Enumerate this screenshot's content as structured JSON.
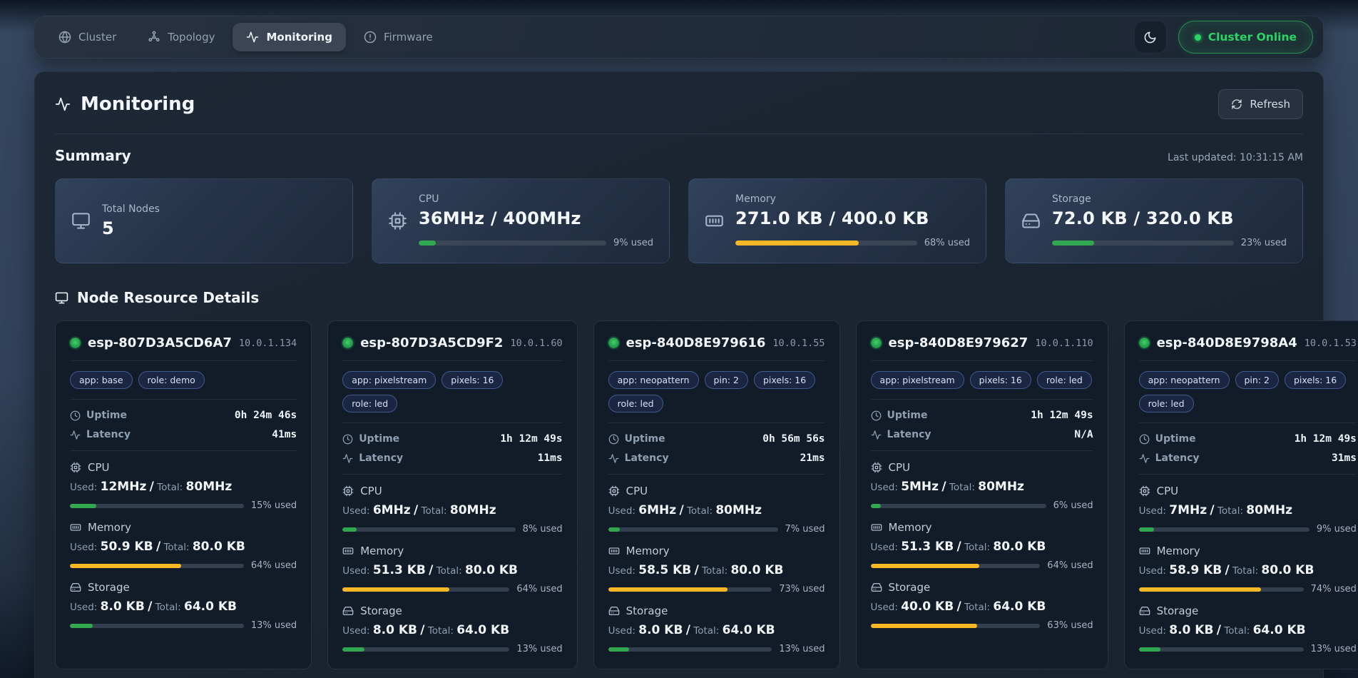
{
  "colors": {
    "green": "#31a84f",
    "amber": "#f8b825"
  },
  "nav": {
    "items": [
      {
        "label": "Cluster",
        "icon": "globe",
        "active": false
      },
      {
        "label": "Topology",
        "icon": "network",
        "active": false
      },
      {
        "label": "Monitoring",
        "icon": "activity",
        "active": true
      },
      {
        "label": "Firmware",
        "icon": "firmware",
        "active": false
      }
    ],
    "theme_toggle_icon": "moon",
    "status_button": {
      "label": "Cluster Online"
    }
  },
  "page": {
    "title": "Monitoring",
    "refresh_label": "Refresh"
  },
  "summary": {
    "heading": "Summary",
    "last_updated": "Last updated: 10:31:15 AM",
    "cards": [
      {
        "label": "Total Nodes",
        "value": "5",
        "icon": "monitor"
      },
      {
        "label": "CPU",
        "value": "36MHz / 400MHz",
        "icon": "cpu",
        "percent": 9,
        "percent_label": "9% used",
        "color": "green"
      },
      {
        "label": "Memory",
        "value": "271.0 KB / 400.0 KB",
        "icon": "memory",
        "percent": 68,
        "percent_label": "68% used",
        "color": "amber"
      },
      {
        "label": "Storage",
        "value": "72.0 KB / 320.0 KB",
        "icon": "storage",
        "percent": 23,
        "percent_label": "23% used",
        "color": "green"
      }
    ]
  },
  "nodes": {
    "heading": "Node Resource Details",
    "labels": {
      "uptime": "Uptime",
      "latency": "Latency",
      "used": "Used:",
      "total": "Total:",
      "separator": "/"
    },
    "cards": [
      {
        "name": "esp-807D3A5CD6A7",
        "ip": "10.0.1.134",
        "tags": [
          "app: base",
          "role: demo"
        ],
        "uptime": "0h 24m 46s",
        "latency": "41ms",
        "resources": [
          {
            "label": "CPU",
            "icon": "cpu",
            "used": "12MHz",
            "total": "80MHz",
            "percent": 15,
            "percent_label": "15% used",
            "color": "green"
          },
          {
            "label": "Memory",
            "icon": "memory",
            "used": "50.9 KB",
            "total": "80.0 KB",
            "percent": 64,
            "percent_label": "64% used",
            "color": "amber"
          },
          {
            "label": "Storage",
            "icon": "storage",
            "used": "8.0 KB",
            "total": "64.0 KB",
            "percent": 13,
            "percent_label": "13% used",
            "color": "green"
          }
        ]
      },
      {
        "name": "esp-807D3A5CD9F2",
        "ip": "10.0.1.60",
        "tags": [
          "app: pixelstream",
          "pixels: 16",
          "role: led"
        ],
        "uptime": "1h 12m 49s",
        "latency": "11ms",
        "resources": [
          {
            "label": "CPU",
            "icon": "cpu",
            "used": "6MHz",
            "total": "80MHz",
            "percent": 8,
            "percent_label": "8% used",
            "color": "green"
          },
          {
            "label": "Memory",
            "icon": "memory",
            "used": "51.3 KB",
            "total": "80.0 KB",
            "percent": 64,
            "percent_label": "64% used",
            "color": "amber"
          },
          {
            "label": "Storage",
            "icon": "storage",
            "used": "8.0 KB",
            "total": "64.0 KB",
            "percent": 13,
            "percent_label": "13% used",
            "color": "green"
          }
        ]
      },
      {
        "name": "esp-840D8E979616",
        "ip": "10.0.1.55",
        "tags": [
          "app: neopattern",
          "pin: 2",
          "pixels: 16",
          "role: led"
        ],
        "uptime": "0h 56m 56s",
        "latency": "21ms",
        "resources": [
          {
            "label": "CPU",
            "icon": "cpu",
            "used": "6MHz",
            "total": "80MHz",
            "percent": 7,
            "percent_label": "7% used",
            "color": "green"
          },
          {
            "label": "Memory",
            "icon": "memory",
            "used": "58.5 KB",
            "total": "80.0 KB",
            "percent": 73,
            "percent_label": "73% used",
            "color": "amber"
          },
          {
            "label": "Storage",
            "icon": "storage",
            "used": "8.0 KB",
            "total": "64.0 KB",
            "percent": 13,
            "percent_label": "13% used",
            "color": "green"
          }
        ]
      },
      {
        "name": "esp-840D8E979627",
        "ip": "10.0.1.110",
        "tags": [
          "app: pixelstream",
          "pixels: 16",
          "role: led"
        ],
        "uptime": "1h 12m 49s",
        "latency": "N/A",
        "resources": [
          {
            "label": "CPU",
            "icon": "cpu",
            "used": "5MHz",
            "total": "80MHz",
            "percent": 6,
            "percent_label": "6% used",
            "color": "green"
          },
          {
            "label": "Memory",
            "icon": "memory",
            "used": "51.3 KB",
            "total": "80.0 KB",
            "percent": 64,
            "percent_label": "64% used",
            "color": "amber"
          },
          {
            "label": "Storage",
            "icon": "storage",
            "used": "40.0 KB",
            "total": "64.0 KB",
            "percent": 63,
            "percent_label": "63% used",
            "color": "amber"
          }
        ]
      },
      {
        "name": "esp-840D8E9798A4",
        "ip": "10.0.1.53",
        "tags": [
          "app: neopattern",
          "pin: 2",
          "pixels: 16",
          "role: led"
        ],
        "uptime": "1h 12m 49s",
        "latency": "31ms",
        "resources": [
          {
            "label": "CPU",
            "icon": "cpu",
            "used": "7MHz",
            "total": "80MHz",
            "percent": 9,
            "percent_label": "9% used",
            "color": "green"
          },
          {
            "label": "Memory",
            "icon": "memory",
            "used": "58.9 KB",
            "total": "80.0 KB",
            "percent": 74,
            "percent_label": "74% used",
            "color": "amber"
          },
          {
            "label": "Storage",
            "icon": "storage",
            "used": "8.0 KB",
            "total": "64.0 KB",
            "percent": 13,
            "percent_label": "13% used",
            "color": "green"
          }
        ]
      }
    ]
  }
}
